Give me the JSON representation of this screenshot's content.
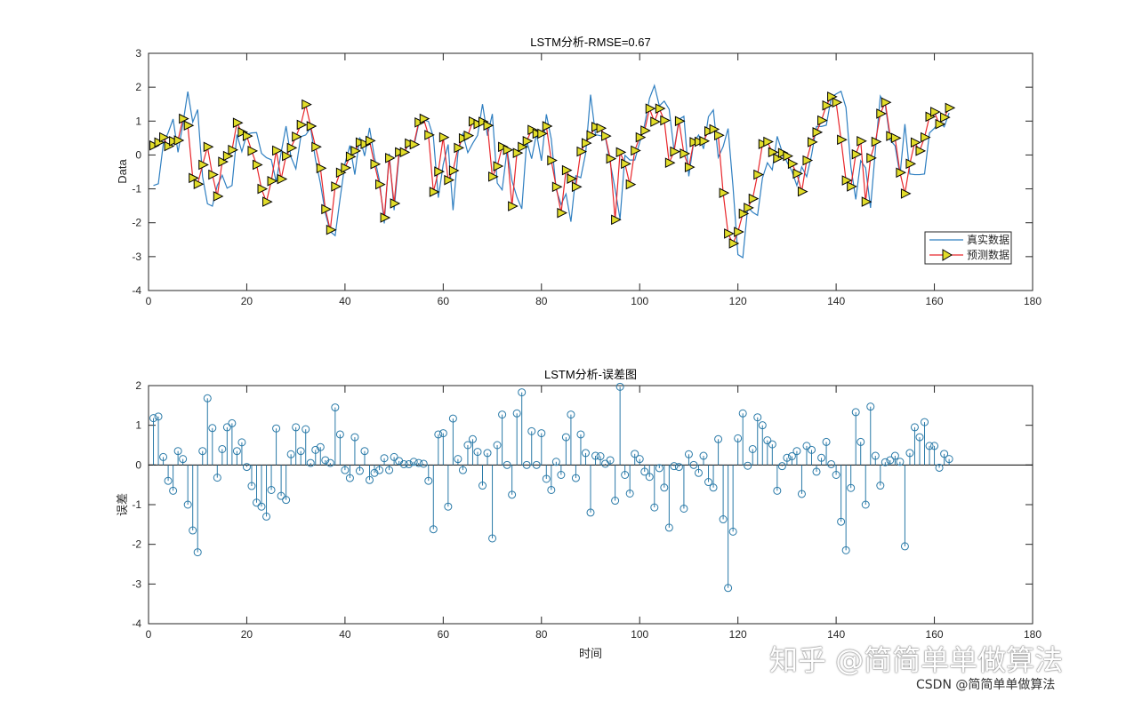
{
  "chart_data": [
    {
      "type": "line",
      "title": "LSTM分析-RMSE=0.67",
      "xlabel": "",
      "ylabel": "Data",
      "xlim": [
        0,
        180
      ],
      "ylim": [
        -4,
        3
      ],
      "xticks": [
        "0",
        "20",
        "40",
        "60",
        "80",
        "100",
        "120",
        "140",
        "160",
        "180"
      ],
      "yticks": [
        "-4",
        "-3",
        "-2",
        "-1",
        "0",
        "1",
        "2",
        "3"
      ],
      "grid": false,
      "legend_position": "bottom-right",
      "colors": {
        "true": "#2f7fc1",
        "pred_line": "#e8262b",
        "pred_marker": "#e2dd2a"
      },
      "series": [
        {
          "name": "真实数据",
          "marker": "none",
          "values": [
            -0.9,
            -0.85,
            0.32,
            0.66,
            1.06,
            0.08,
            0.92,
            1.87,
            0.97,
            1.34,
            -0.64,
            -1.44,
            -1.51,
            -0.9,
            -0.6,
            -0.98,
            -0.9,
            0.6,
            0.1,
            0.61,
            0.65,
            0.66,
            0.05,
            -0.08,
            -0.14,
            -0.79,
            0.07,
            0.85,
            -0.06,
            -0.41,
            0.54,
            0.59,
            0.8,
            -0.14,
            -0.84,
            -1.72,
            -2.26,
            -2.38,
            -1.29,
            -0.25,
            0.28,
            -0.58,
            0.52,
            -0.03,
            0.8,
            -0.07,
            -0.74,
            -2.02,
            0.04,
            -1.63,
            -0.02,
            0.06,
            0.32,
            0.23,
            0.91,
            1.04,
            0.99,
            0.53,
            -1.26,
            -0.28,
            0.31,
            -1.63,
            0.06,
            0.62,
            0.07,
            0.34,
            0.58,
            1.5,
            0.57,
            1.21,
            -0.83,
            -1.03,
            0.15,
            -0.76,
            -1.24,
            -1.59,
            0.41,
            -0.11,
            0.63,
            -0.17,
            1.2,
            0.47,
            -1.02,
            -1.46,
            -1.15,
            -1.97,
            -0.61,
            -0.67,
            0.05,
            1.78,
            0.6,
            0.57,
            0.53,
            -0.23,
            -1.01,
            -1.89,
            -0.01,
            -0.15,
            -0.15,
            0.37,
            0.89,
            1.67,
            2.05,
            1.45,
            1.59,
            1.35,
            0.13,
            1.05,
            1.14,
            -0.63,
            0.38,
            0.59,
            0.18,
            1.13,
            1.33,
            -0.07,
            0.25,
            0.78,
            -0.93,
            -2.94,
            -3.03,
            -1.54,
            -1.69,
            -1.78,
            -0.68,
            -0.23,
            -0.44,
            0.55,
            0.09,
            -0.21,
            -0.48,
            -0.9,
            -0.35,
            -0.64,
            0.0,
            0.84,
            0.84,
            0.88,
            1.7,
            1.8,
            1.88,
            1.4,
            -0.35,
            -1.31,
            -0.17,
            -0.38,
            -1.56,
            0.16,
            1.74,
            1.48,
            0.44,
            0.27,
            -0.6,
            0.91,
            -0.56,
            -0.58,
            -0.58,
            -0.56,
            0.65,
            0.79,
            0.98,
            0.83,
            1.24
          ]
        },
        {
          "name": "预测数据",
          "marker": "triangle-right",
          "values": [
            0.28,
            0.37,
            0.52,
            0.26,
            0.41,
            0.43,
            1.07,
            0.87,
            -0.68,
            -0.86,
            -0.29,
            0.24,
            -0.58,
            -1.22,
            -0.2,
            -0.03,
            0.15,
            0.95,
            0.67,
            0.56,
            0.12,
            -0.29,
            -1.0,
            -1.38,
            -0.77,
            0.13,
            -0.71,
            -0.03,
            0.21,
            0.54,
            0.89,
            1.49,
            0.85,
            0.24,
            -0.39,
            -1.6,
            -2.21,
            -0.93,
            -0.52,
            -0.38,
            -0.05,
            0.12,
            0.37,
            0.32,
            0.42,
            -0.27,
            -0.87,
            -1.85,
            -0.09,
            -1.43,
            0.08,
            0.08,
            0.34,
            0.31,
            0.96,
            1.07,
            0.59,
            -1.09,
            -0.49,
            0.52,
            -0.74,
            -0.46,
            0.21,
            0.49,
            0.57,
            0.99,
            0.91,
            0.98,
            0.87,
            -0.64,
            -0.33,
            0.24,
            0.15,
            -1.51,
            0.06,
            0.24,
            0.41,
            0.74,
            0.63,
            0.63,
            0.85,
            -0.16,
            -0.94,
            -1.71,
            -0.45,
            -0.7,
            -0.94,
            0.1,
            0.35,
            0.58,
            0.83,
            0.79,
            0.56,
            -0.11,
            -1.91,
            0.08,
            -0.26,
            -0.87,
            0.13,
            0.52,
            0.72,
            1.37,
            0.98,
            1.37,
            1.02,
            -0.23,
            0.1,
            1.0,
            0.04,
            -0.36,
            0.38,
            0.39,
            0.41,
            0.7,
            0.76,
            0.58,
            -1.12,
            -2.32,
            -2.61,
            -2.27,
            -1.73,
            -1.56,
            -1.29,
            -0.58,
            0.32,
            0.39,
            0.08,
            -0.1,
            0.06,
            -0.03,
            -0.26,
            -0.55,
            -1.08,
            -0.16,
            0.38,
            0.67,
            1.02,
            1.46,
            1.72,
            1.55,
            0.45,
            -0.75,
            -0.93,
            0.02,
            0.41,
            -1.38,
            -0.09,
            0.39,
            1.22,
            1.55,
            0.56,
            0.5,
            -0.52,
            -1.14,
            -0.26,
            0.37,
            0.12,
            0.52,
            1.13,
            1.27,
            0.91,
            1.11,
            1.39
          ]
        }
      ]
    },
    {
      "type": "stem",
      "title": "LSTM分析-误差图",
      "xlabel": "时间",
      "ylabel": "误差",
      "xlim": [
        0,
        180
      ],
      "ylim": [
        -4,
        2
      ],
      "xticks": [
        "0",
        "20",
        "40",
        "60",
        "80",
        "100",
        "120",
        "140",
        "160",
        "180"
      ],
      "yticks": [
        "-4",
        "-3",
        "-2",
        "-1",
        "0",
        "1",
        "2"
      ],
      "grid": false,
      "colors": {
        "stem": "#2a7aa8",
        "baseline": "#000000"
      },
      "values": [
        1.18,
        1.22,
        0.2,
        -0.4,
        -0.65,
        0.35,
        0.15,
        -1.0,
        -1.65,
        -2.2,
        0.35,
        1.68,
        0.93,
        -0.32,
        0.4,
        0.95,
        1.05,
        0.35,
        0.57,
        -0.05,
        -0.53,
        -0.95,
        -1.05,
        -1.3,
        -0.63,
        0.92,
        -0.78,
        -0.88,
        0.27,
        0.95,
        0.35,
        0.9,
        0.05,
        0.38,
        0.45,
        0.12,
        0.05,
        1.45,
        0.77,
        -0.13,
        -0.33,
        0.7,
        -0.15,
        0.35,
        -0.38,
        -0.2,
        -0.13,
        0.17,
        -0.13,
        0.2,
        0.1,
        0.02,
        0.02,
        0.08,
        0.05,
        0.03,
        -0.4,
        -1.62,
        0.77,
        0.8,
        -1.05,
        1.17,
        0.15,
        -0.13,
        0.5,
        0.65,
        0.33,
        -0.52,
        0.3,
        -1.85,
        0.5,
        1.27,
        0.0,
        -0.75,
        1.3,
        1.83,
        0.0,
        0.85,
        0.0,
        0.8,
        -0.35,
        -0.63,
        0.08,
        -0.25,
        0.7,
        1.27,
        -0.33,
        0.77,
        0.3,
        -1.2,
        0.23,
        0.22,
        0.03,
        0.12,
        -0.9,
        1.97,
        -0.25,
        -0.72,
        0.28,
        0.15,
        -0.17,
        -0.3,
        -1.07,
        -0.08,
        -0.57,
        -1.58,
        -0.03,
        -0.05,
        -1.1,
        0.27,
        0.0,
        -0.2,
        0.23,
        -0.43,
        -0.57,
        0.65,
        -1.37,
        -3.1,
        -1.68,
        0.67,
        1.3,
        -0.02,
        0.4,
        1.2,
        1.0,
        0.62,
        0.52,
        -0.65,
        -0.03,
        0.18,
        0.22,
        0.35,
        -0.73,
        0.48,
        0.38,
        -0.17,
        0.18,
        0.58,
        0.02,
        -0.25,
        -1.43,
        -2.15,
        -0.58,
        1.33,
        0.58,
        -1.0,
        1.47,
        0.23,
        -0.52,
        0.07,
        0.12,
        0.23,
        0.08,
        -2.05,
        0.3,
        0.95,
        0.7,
        1.08,
        0.48,
        0.48,
        -0.07,
        0.28,
        0.15
      ]
    }
  ],
  "watermark": {
    "zhihu": "知乎 @简简单单做算法",
    "csdn": "CSDN @简简单单做算法"
  }
}
